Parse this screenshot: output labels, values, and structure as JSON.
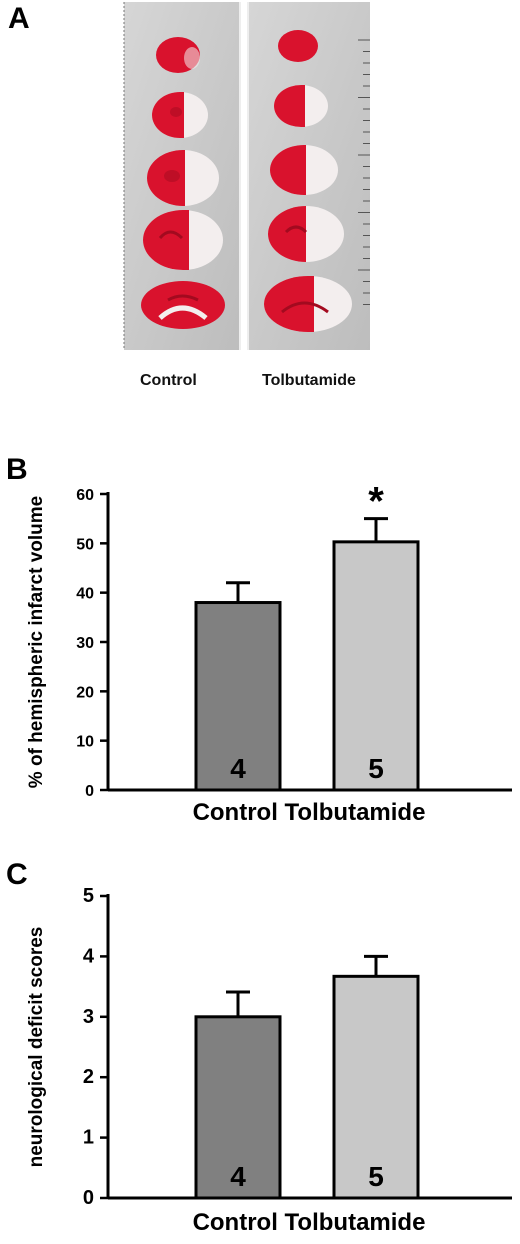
{
  "panel_letters": {
    "a": "A",
    "b": "B",
    "c": "C"
  },
  "photo": {
    "labels": [
      "Control",
      "Tolbutamide"
    ],
    "colors": {
      "background": "#c8c8c8",
      "tissue_red": "#d9122d",
      "tissue_white": "#f3eeee"
    }
  },
  "colors": {
    "control_bar": "#808080",
    "tolbutamide_bar": "#c8c8c8",
    "axis": "#000000"
  },
  "chart_data": [
    {
      "type": "bar",
      "panel": "B",
      "categories": [
        "Control",
        "Tolbutamide"
      ],
      "values": [
        38,
        50.3
      ],
      "errors": [
        4,
        4.7
      ],
      "bar_labels": [
        "4",
        "5"
      ],
      "significance": [
        "",
        "*"
      ],
      "ylabel": "% of hemispheric infarct volume",
      "ylim": [
        0,
        60
      ],
      "yticks": [
        0,
        10,
        20,
        30,
        40,
        50,
        60
      ],
      "grid": false
    },
    {
      "type": "bar",
      "panel": "C",
      "categories": [
        "Control",
        "Tolbutamide"
      ],
      "values": [
        3,
        3.67
      ],
      "errors": [
        0.41,
        0.33
      ],
      "bar_labels": [
        "4",
        "5"
      ],
      "ylabel": "neurological deficit scores",
      "ylim": [
        0,
        5
      ],
      "yticks": [
        0,
        1,
        2,
        3,
        4,
        5
      ],
      "grid": false
    }
  ]
}
